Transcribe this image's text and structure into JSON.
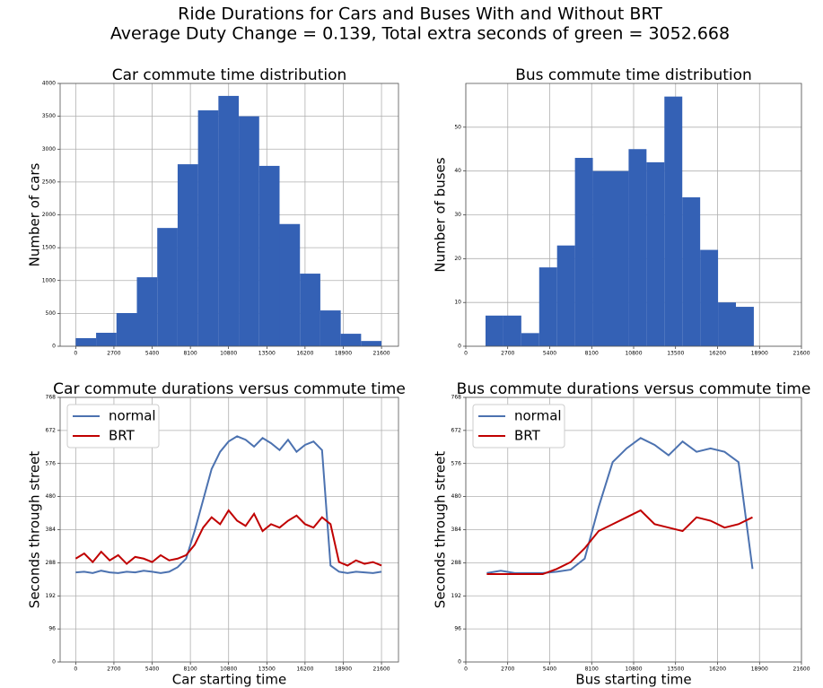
{
  "title": "Ride Durations for Cars and Buses With and Without BRT",
  "subtitle": "Average Duty Change = 0.139, Total extra seconds of green = 3052.668",
  "chart_data": [
    {
      "type": "histogram",
      "title": "Car commute time distribution",
      "y_label": "Number of cars",
      "color": "#3461b5",
      "grid": true,
      "bins": [
        0,
        1440,
        2880,
        4320,
        5760,
        7200,
        8640,
        10080,
        11520,
        12960,
        14400,
        15840,
        17280,
        18720,
        20160,
        21600
      ],
      "values": [
        123,
        205,
        505,
        1050,
        1800,
        2770,
        3590,
        3810,
        3500,
        2745,
        1860,
        1105,
        545,
        190,
        80
      ],
      "xlim": [
        -1100,
        22800
      ],
      "xticks": [
        0,
        2700,
        5400,
        8100,
        10800,
        13500,
        16200,
        18900,
        21600
      ],
      "ylim": [
        0,
        4000
      ],
      "yticks": [
        0,
        500,
        1000,
        1500,
        2000,
        2500,
        3000,
        3500,
        4000
      ]
    },
    {
      "type": "histogram",
      "title": "Bus commute time distribution",
      "y_label": "Number of buses",
      "color": "#3461b5",
      "grid": true,
      "bins": [
        1270,
        2421,
        3572,
        4723,
        5874,
        7025,
        8176,
        9327,
        10478,
        11629,
        12780,
        13931,
        15082,
        16233,
        17384,
        18535
      ],
      "values": [
        7,
        7,
        3,
        18,
        23,
        43,
        40,
        40,
        45,
        42,
        57,
        34,
        22,
        10,
        9
      ],
      "xlim": [
        0,
        21600
      ],
      "xticks": [
        0,
        2700,
        5400,
        8100,
        10800,
        13500,
        16200,
        18900,
        21600
      ],
      "ylim": [
        0,
        60
      ],
      "yticks": [
        0,
        10,
        20,
        30,
        40,
        50
      ]
    },
    {
      "type": "line",
      "title": "Car commute durations versus commute time",
      "x_label": "Car starting time",
      "y_label": "Seconds through street",
      "grid": true,
      "legend": "upper left",
      "x": [
        0,
        600,
        1200,
        1800,
        2400,
        3000,
        3600,
        4200,
        4800,
        5400,
        6000,
        6600,
        7200,
        7800,
        8400,
        9000,
        9600,
        10200,
        10800,
        11400,
        12000,
        12600,
        13200,
        13800,
        14400,
        15000,
        15600,
        16200,
        16800,
        17400,
        18000,
        18600,
        19200,
        19800,
        20400,
        21000,
        21600
      ],
      "series": [
        {
          "name": "normal",
          "color": "#4c72b0",
          "values": [
            260,
            262,
            258,
            265,
            260,
            258,
            262,
            260,
            265,
            262,
            258,
            262,
            275,
            300,
            380,
            470,
            560,
            610,
            640,
            655,
            645,
            625,
            650,
            635,
            615,
            645,
            610,
            630,
            640,
            615,
            280,
            262,
            258,
            262,
            260,
            258,
            262
          ]
        },
        {
          "name": "BRT",
          "color": "#c00000",
          "values": [
            300,
            315,
            290,
            320,
            295,
            310,
            285,
            305,
            300,
            290,
            310,
            295,
            300,
            310,
            340,
            390,
            420,
            400,
            440,
            410,
            395,
            430,
            380,
            400,
            390,
            410,
            425,
            400,
            390,
            420,
            400,
            290,
            280,
            295,
            285,
            290,
            280
          ]
        }
      ],
      "xlim": [
        -1100,
        22800
      ],
      "xticks": [
        0,
        2700,
        5400,
        8100,
        10800,
        13500,
        16200,
        18900,
        21600
      ],
      "ylim": [
        0,
        768
      ],
      "yticks": [
        0,
        96,
        192,
        288,
        384,
        480,
        576,
        672,
        768
      ]
    },
    {
      "type": "line",
      "title": "Bus commute durations versus commute time",
      "x_label": "Bus starting time",
      "y_label": "Seconds through street",
      "grid": true,
      "legend": "upper left",
      "x": [
        1350,
        2250,
        3150,
        4050,
        4950,
        5850,
        6750,
        7650,
        8550,
        9450,
        10350,
        11250,
        12150,
        13050,
        13950,
        14850,
        15750,
        16650,
        17550,
        18450
      ],
      "series": [
        {
          "name": "normal",
          "color": "#4c72b0",
          "values": [
            258,
            265,
            258,
            258,
            258,
            262,
            268,
            300,
            450,
            580,
            620,
            650,
            630,
            600,
            640,
            610,
            620,
            610,
            580,
            270
          ]
        },
        {
          "name": "BRT",
          "color": "#c00000",
          "values": [
            255,
            255,
            255,
            255,
            255,
            270,
            290,
            330,
            380,
            400,
            420,
            440,
            400,
            390,
            380,
            420,
            410,
            390,
            400,
            420
          ]
        }
      ],
      "xlim": [
        0,
        21600
      ],
      "xticks": [
        0,
        2700,
        5400,
        8100,
        10800,
        13500,
        16200,
        18900,
        21600
      ],
      "ylim": [
        0,
        768
      ],
      "yticks": [
        0,
        96,
        192,
        288,
        384,
        480,
        576,
        672,
        768
      ]
    }
  ]
}
